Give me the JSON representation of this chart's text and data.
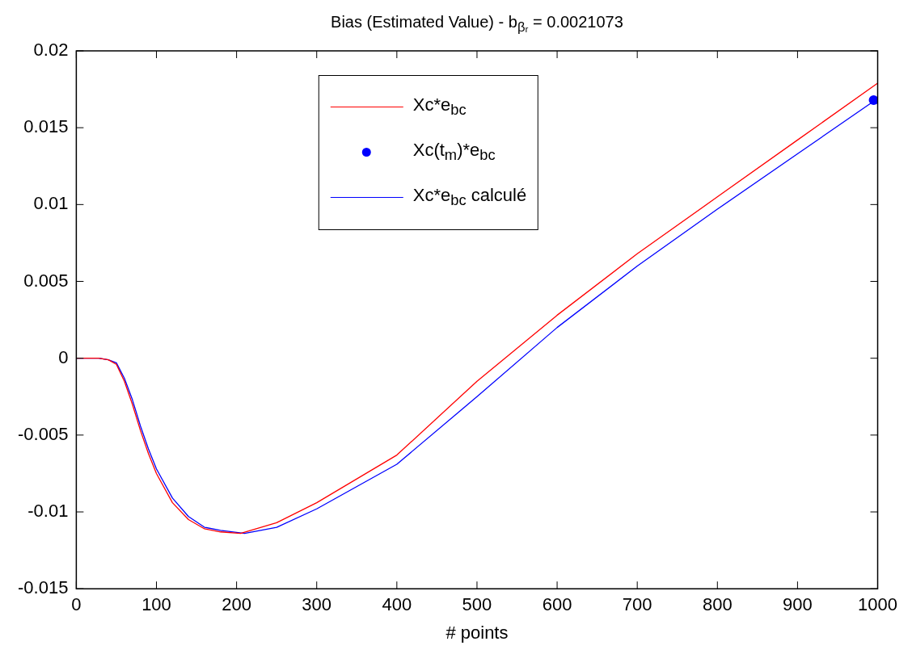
{
  "chart_data": {
    "type": "line",
    "title": "Bias (Estimated Value) - b$_{βᵣ}$ = 0.0021073",
    "xlabel": "# points",
    "xlim": [
      0,
      1000
    ],
    "xticks": [
      0,
      100,
      200,
      300,
      400,
      500,
      600,
      700,
      800,
      900,
      1000
    ],
    "ylim": [
      -0.015,
      0.02
    ],
    "yticks": [
      -0.015,
      -0.01,
      -0.005,
      0,
      0.005,
      0.01,
      0.015,
      0.02
    ],
    "grid": false,
    "legend": "top",
    "marker": "none",
    "line_style": "solid",
    "series": [
      {
        "name": "Xc*e$_{bc}$",
        "color": "#ff0000",
        "x": [
          0,
          28,
          40,
          50,
          60,
          70,
          80,
          90,
          100,
          120,
          140,
          160,
          180,
          205,
          250,
          300,
          400,
          500,
          600,
          700,
          800,
          900,
          1000
        ],
        "values": [
          0,
          0,
          -0.0001,
          -0.0004,
          -0.0015,
          -0.003,
          -0.0047,
          -0.0062,
          -0.0075,
          -0.0094,
          -0.0105,
          -0.0111,
          -0.0113,
          -0.0114,
          -0.0107,
          -0.0094,
          -0.0063,
          -0.0015,
          0.0028,
          0.0068,
          0.0105,
          0.0142,
          0.0179
        ]
      },
      {
        "name": "Xc(t$_{m}$)*e$_{bc}$",
        "type": "scatter",
        "marker": "circle",
        "color": "#0000ff",
        "x": [
          995
        ],
        "values": [
          0.0168
        ]
      },
      {
        "name": "Xc*e$_{bc}$ calculé",
        "color": "#0000ff",
        "x": [
          0,
          28,
          40,
          50,
          60,
          70,
          80,
          90,
          100,
          120,
          140,
          160,
          180,
          210,
          250,
          300,
          400,
          500,
          600,
          700,
          800,
          900,
          1000
        ],
        "values": [
          0,
          0,
          -0.0001,
          -0.0003,
          -0.0013,
          -0.0027,
          -0.0044,
          -0.0059,
          -0.0072,
          -0.0091,
          -0.0103,
          -0.011,
          -0.0112,
          -0.0114,
          -0.011,
          -0.0098,
          -0.0069,
          -0.0025,
          0.002,
          0.006,
          0.0097,
          0.0133,
          0.0169
        ]
      }
    ]
  }
}
